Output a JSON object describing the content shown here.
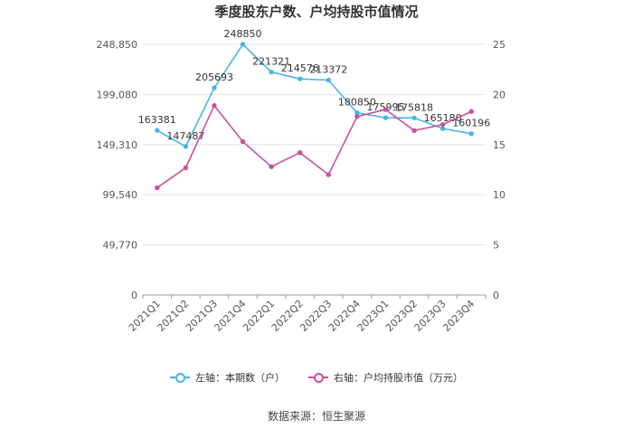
{
  "chart_data": {
    "type": "line",
    "title": "季度股东户数、户均持股市值情况",
    "categories": [
      "2021Q1",
      "2021Q2",
      "2021Q3",
      "2021Q4",
      "2022Q1",
      "2022Q2",
      "2022Q3",
      "2022Q4",
      "2023Q1",
      "2023Q2",
      "2023Q3",
      "2023Q4"
    ],
    "left_axis": {
      "ticks": [
        "0",
        "49,770",
        "99,540",
        "149,310",
        "199,080",
        "248,850"
      ],
      "ylim": [
        0,
        248850
      ]
    },
    "right_axis": {
      "ticks": [
        "0",
        "5",
        "10",
        "15",
        "20",
        "25"
      ],
      "ylim": [
        0,
        25
      ]
    },
    "series": [
      {
        "name": "左轴：本期数（户）",
        "axis": "left",
        "color": "#4ab4e8",
        "values": [
          163381,
          147487,
          205693,
          248850,
          221321,
          214576,
          213372,
          180850,
          175995,
          175818,
          165180,
          160196
        ],
        "labels": [
          "163381",
          "147487",
          "205693",
          "248850",
          "221321",
          "214576",
          "213372",
          "180850",
          "175995",
          "175818",
          "165180",
          "160196"
        ]
      },
      {
        "name": "右轴：户均持股市值（万元）",
        "axis": "right",
        "color": "#cc4f9e",
        "values": [
          10.7,
          12.7,
          18.9,
          15.3,
          12.8,
          14.2,
          12.0,
          17.8,
          18.5,
          16.4,
          17.0,
          18.3
        ]
      }
    ],
    "grid": true,
    "legend_position": "bottom"
  },
  "source": "数据来源：恒生聚源"
}
